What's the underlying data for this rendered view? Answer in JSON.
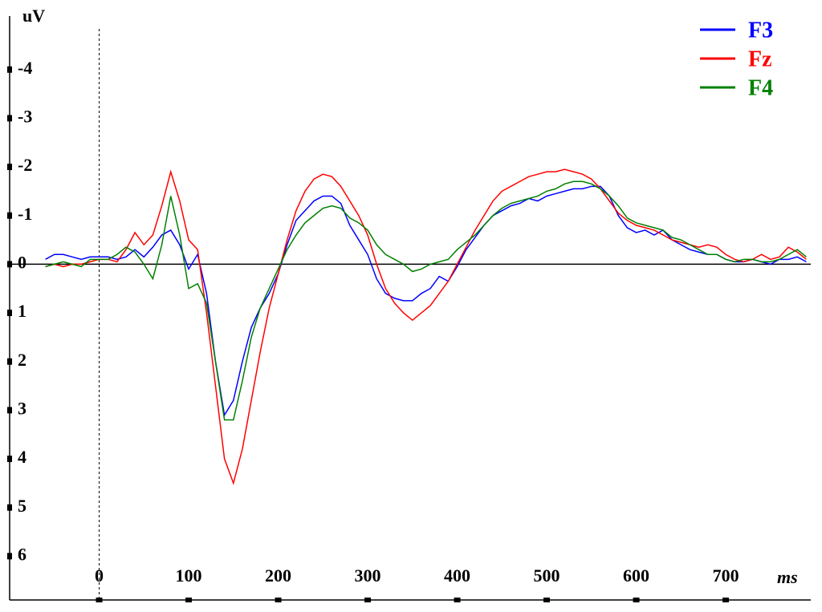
{
  "chart_data": {
    "type": "line",
    "x_label": "ms",
    "y_label": "uV",
    "xlim": [
      -100,
      795
    ],
    "ylim": [
      -5.1,
      6.9
    ],
    "y_inverted": true,
    "xticks": [
      0,
      100,
      200,
      300,
      400,
      500,
      600,
      700
    ],
    "yticks": [
      -4,
      -3,
      -2,
      -1,
      0,
      1,
      2,
      3,
      4,
      5,
      6
    ],
    "legend": "upper right",
    "x": [
      -60,
      -50,
      -40,
      -30,
      -20,
      -10,
      0,
      10,
      20,
      30,
      40,
      50,
      60,
      70,
      80,
      90,
      100,
      110,
      120,
      130,
      140,
      150,
      160,
      170,
      180,
      190,
      200,
      210,
      220,
      230,
      240,
      250,
      260,
      270,
      280,
      290,
      300,
      310,
      320,
      330,
      340,
      350,
      360,
      370,
      380,
      390,
      400,
      410,
      420,
      430,
      440,
      450,
      460,
      470,
      480,
      490,
      500,
      510,
      520,
      530,
      540,
      550,
      560,
      570,
      580,
      590,
      600,
      610,
      620,
      630,
      640,
      650,
      660,
      670,
      680,
      690,
      700,
      710,
      720,
      730,
      740,
      750,
      760,
      770,
      780,
      790
    ],
    "series": [
      {
        "name": "F3",
        "color": "#0000ff",
        "values": [
          -0.1,
          -0.2,
          -0.2,
          -0.15,
          -0.1,
          -0.15,
          -0.15,
          -0.15,
          -0.1,
          -0.15,
          -0.3,
          -0.15,
          -0.35,
          -0.6,
          -0.7,
          -0.4,
          0.1,
          -0.2,
          0.6,
          2.0,
          3.1,
          2.8,
          2.0,
          1.3,
          0.9,
          0.6,
          0.2,
          -0.4,
          -0.9,
          -1.1,
          -1.3,
          -1.4,
          -1.4,
          -1.25,
          -0.8,
          -0.5,
          -0.2,
          0.3,
          0.6,
          0.7,
          0.75,
          0.75,
          0.6,
          0.5,
          0.25,
          0.35,
          0.05,
          -0.3,
          -0.55,
          -0.8,
          -1.0,
          -1.1,
          -1.2,
          -1.25,
          -1.35,
          -1.3,
          -1.4,
          -1.45,
          -1.5,
          -1.55,
          -1.55,
          -1.6,
          -1.6,
          -1.4,
          -1.0,
          -0.75,
          -0.65,
          -0.7,
          -0.6,
          -0.7,
          -0.5,
          -0.4,
          -0.3,
          -0.25,
          -0.2,
          -0.2,
          -0.1,
          -0.05,
          -0.05,
          -0.1,
          -0.05,
          0.0,
          -0.1,
          -0.1,
          -0.15,
          -0.05
        ]
      },
      {
        "name": "Fz",
        "color": "#ff0000",
        "values": [
          0.05,
          0,
          0.05,
          0,
          0,
          -0.05,
          -0.1,
          -0.1,
          -0.05,
          -0.3,
          -0.65,
          -0.4,
          -0.6,
          -1.2,
          -1.9,
          -1.3,
          -0.5,
          -0.3,
          1.0,
          2.5,
          4.0,
          4.5,
          3.8,
          2.8,
          1.8,
          0.9,
          0.2,
          -0.5,
          -1.1,
          -1.5,
          -1.75,
          -1.85,
          -1.8,
          -1.6,
          -1.3,
          -1.0,
          -0.6,
          0.0,
          0.5,
          0.8,
          1.0,
          1.15,
          1.0,
          0.85,
          0.6,
          0.35,
          0.0,
          -0.35,
          -0.7,
          -1.0,
          -1.3,
          -1.5,
          -1.6,
          -1.7,
          -1.8,
          -1.85,
          -1.9,
          -1.9,
          -1.95,
          -1.9,
          -1.85,
          -1.75,
          -1.55,
          -1.3,
          -1.05,
          -0.9,
          -0.8,
          -0.75,
          -0.7,
          -0.6,
          -0.5,
          -0.45,
          -0.4,
          -0.35,
          -0.4,
          -0.35,
          -0.2,
          -0.1,
          -0.05,
          -0.1,
          -0.2,
          -0.1,
          -0.15,
          -0.35,
          -0.25,
          -0.1
        ]
      },
      {
        "name": "F4",
        "color": "#008000",
        "values": [
          0.05,
          0.0,
          -0.05,
          0.0,
          0.05,
          -0.1,
          -0.1,
          -0.1,
          -0.2,
          -0.35,
          -0.25,
          0.0,
          0.3,
          -0.4,
          -1.4,
          -0.6,
          0.5,
          0.4,
          0.8,
          2.0,
          3.2,
          3.2,
          2.4,
          1.5,
          0.9,
          0.5,
          0.1,
          -0.3,
          -0.6,
          -0.85,
          -1.0,
          -1.15,
          -1.2,
          -1.15,
          -0.95,
          -0.85,
          -0.7,
          -0.4,
          -0.2,
          -0.1,
          0.0,
          0.15,
          0.1,
          0.0,
          -0.05,
          -0.1,
          -0.3,
          -0.45,
          -0.6,
          -0.8,
          -1.0,
          -1.15,
          -1.25,
          -1.3,
          -1.35,
          -1.4,
          -1.5,
          -1.55,
          -1.65,
          -1.7,
          -1.7,
          -1.65,
          -1.55,
          -1.4,
          -1.2,
          -0.95,
          -0.85,
          -0.8,
          -0.75,
          -0.7,
          -0.55,
          -0.5,
          -0.4,
          -0.3,
          -0.2,
          -0.2,
          -0.1,
          -0.05,
          -0.1,
          -0.1,
          -0.05,
          -0.05,
          -0.1,
          -0.2,
          -0.3,
          -0.15
        ]
      }
    ]
  }
}
